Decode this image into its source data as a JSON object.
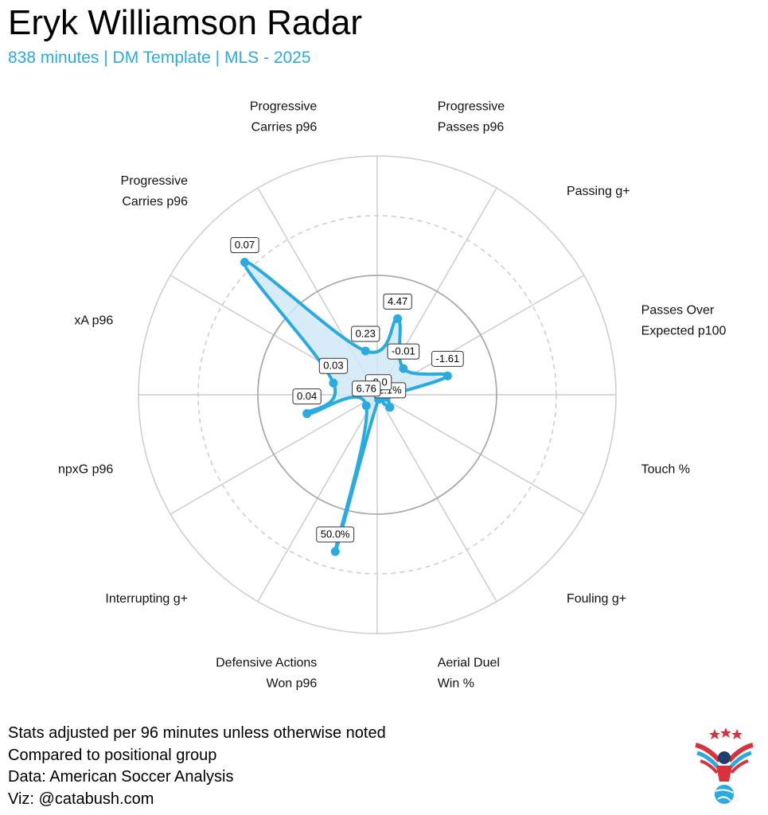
{
  "header": {
    "title": "Eryk Williamson Radar",
    "subtitle": "838 minutes | DM Template | MLS - 2025"
  },
  "colors": {
    "accent": "#29abe2",
    "fill": "#d1e9f6",
    "grid": "#cccccc",
    "ring_inner": "#aaaaaa",
    "logo_red": "#d8323c",
    "logo_blue": "#29abe2",
    "logo_navy": "#1f3f6e"
  },
  "chart_data": {
    "type": "radar",
    "title": "Eryk Williamson Radar",
    "subtitle": "838 minutes | DM Template | MLS - 2025",
    "grid": true,
    "rings": [
      "solid",
      "dashed",
      "solid",
      "solid"
    ],
    "rlim": [
      0,
      1
    ],
    "axes": [
      {
        "label": [
          "Progressive",
          "Carries p96"
        ],
        "value_label": "0.23",
        "r": 0.19
      },
      {
        "label": [
          "Progressive",
          "Passes p96"
        ],
        "value_label": "4.47",
        "r": 0.33
      },
      {
        "label": [
          "Passing g+"
        ],
        "value_label": "-0.01",
        "r": 0.155
      },
      {
        "label": [
          "Passes Over",
          "Expected p100"
        ],
        "value_label": "-1.61",
        "r": 0.305
      },
      {
        "label": [
          "Touch %"
        ],
        "value_label": "",
        "r": 0.04
      },
      {
        "label": [
          "Fouling g+"
        ],
        "value_label": "2.1%",
        "r": 0.075
      },
      {
        "label": [
          "Aerial Duel",
          "Win %"
        ],
        "value_label": "-0.0",
        "r": 0.02
      },
      {
        "label": [
          "Defensive Actions",
          "Won p96"
        ],
        "value_label": "50.0%",
        "r": 0.68
      },
      {
        "label": [
          "Interrupting g+"
        ],
        "value_label": "6.76",
        "r": 0.065
      },
      {
        "label": [
          "npxG p96"
        ],
        "value_label": "0.04",
        "r": 0.305
      },
      {
        "label": [
          "xA p96"
        ],
        "value_label": "0.03",
        "r": 0.19
      },
      {
        "label": [
          "Progressive",
          "Carries p96"
        ],
        "value_label": "0.07",
        "r": 0.785
      }
    ]
  },
  "footer": {
    "lines": [
      "Stats adjusted per 96 minutes unless otherwise noted",
      "Compared to positional group",
      "Data: American Soccer Analysis",
      "Viz: @catabush.com"
    ]
  },
  "logo": {
    "icon": "eagle-soccer-logo"
  }
}
